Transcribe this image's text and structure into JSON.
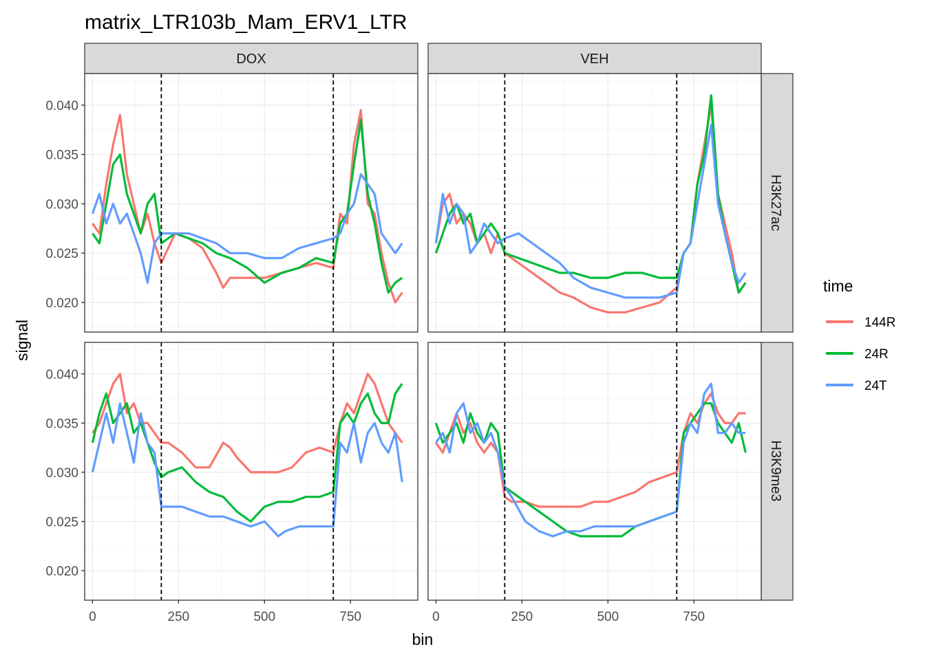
{
  "chart_data": {
    "type": "line",
    "title": "matrix_LTR103b_Mam_ERV1_LTR",
    "xlabel": "bin",
    "ylabel": "signal",
    "xlim": [
      0,
      900
    ],
    "ylim": [
      0.017,
      0.0432
    ],
    "x_ticks": [
      0,
      250,
      500,
      750
    ],
    "x_tick_labels": [
      "0",
      "250",
      "500",
      "750"
    ],
    "y_ticks": [
      0.02,
      0.025,
      0.03,
      0.035,
      0.04
    ],
    "y_tick_labels": [
      "0.020",
      "0.025",
      "0.030",
      "0.035",
      "0.040"
    ],
    "grid": true,
    "vlines": [
      200,
      700
    ],
    "col_facets": [
      "DOX",
      "VEH"
    ],
    "row_facets": [
      "H3K27ac",
      "H3K9me3"
    ],
    "legend": {
      "title": "time",
      "position": "right",
      "entries": [
        "144R",
        "24R",
        "24T"
      ],
      "colors": [
        "#F8766D",
        "#00BA38",
        "#619CFF"
      ]
    },
    "panels": [
      {
        "col": "DOX",
        "row": "H3K27ac",
        "series": [
          {
            "name": "144R",
            "x": [
              0,
              20,
              40,
              60,
              80,
              100,
              120,
              140,
              160,
              180,
              200,
              240,
              280,
              320,
              360,
              380,
              400,
              450,
              500,
              550,
              600,
              650,
              700,
              720,
              740,
              760,
              780,
              800,
              820,
              840,
              860,
              880,
              900
            ],
            "y": [
              0.028,
              0.027,
              0.032,
              0.036,
              0.039,
              0.033,
              0.03,
              0.027,
              0.029,
              0.026,
              0.024,
              0.027,
              0.0265,
              0.0255,
              0.023,
              0.0215,
              0.0225,
              0.0225,
              0.0225,
              0.023,
              0.0235,
              0.024,
              0.0235,
              0.029,
              0.028,
              0.036,
              0.0395,
              0.03,
              0.029,
              0.025,
              0.022,
              0.02,
              0.021
            ]
          },
          {
            "name": "24R",
            "x": [
              0,
              20,
              40,
              60,
              80,
              100,
              120,
              140,
              160,
              180,
              200,
              240,
              280,
              320,
              360,
              400,
              450,
              500,
              550,
              600,
              650,
              700,
              720,
              740,
              760,
              780,
              800,
              820,
              840,
              860,
              880,
              900
            ],
            "y": [
              0.027,
              0.026,
              0.03,
              0.034,
              0.035,
              0.031,
              0.029,
              0.027,
              0.03,
              0.031,
              0.026,
              0.027,
              0.0265,
              0.026,
              0.025,
              0.0245,
              0.0235,
              0.022,
              0.023,
              0.0235,
              0.0245,
              0.024,
              0.028,
              0.029,
              0.034,
              0.0385,
              0.031,
              0.028,
              0.024,
              0.021,
              0.022,
              0.0225
            ]
          },
          {
            "name": "24T",
            "x": [
              0,
              20,
              40,
              60,
              80,
              100,
              120,
              140,
              160,
              180,
              200,
              240,
              280,
              320,
              360,
              400,
              450,
              500,
              550,
              600,
              650,
              700,
              720,
              740,
              760,
              780,
              800,
              820,
              840,
              860,
              880,
              900
            ],
            "y": [
              0.029,
              0.031,
              0.028,
              0.03,
              0.028,
              0.029,
              0.027,
              0.025,
              0.022,
              0.026,
              0.027,
              0.027,
              0.027,
              0.0265,
              0.026,
              0.025,
              0.025,
              0.0245,
              0.0245,
              0.0255,
              0.026,
              0.0265,
              0.027,
              0.029,
              0.03,
              0.033,
              0.032,
              0.031,
              0.027,
              0.026,
              0.025,
              0.026
            ]
          }
        ]
      },
      {
        "col": "VEH",
        "row": "H3K27ac",
        "series": [
          {
            "name": "144R",
            "x": [
              0,
              20,
              40,
              60,
              80,
              100,
              120,
              140,
              160,
              180,
              200,
              240,
              280,
              320,
              360,
              400,
              450,
              500,
              550,
              600,
              650,
              700,
              720,
              740,
              760,
              780,
              800,
              820,
              840,
              860,
              880,
              900
            ],
            "y": [
              0.026,
              0.03,
              0.031,
              0.028,
              0.029,
              0.028,
              0.026,
              0.027,
              0.025,
              0.027,
              0.025,
              0.024,
              0.023,
              0.022,
              0.021,
              0.0205,
              0.0195,
              0.019,
              0.019,
              0.0195,
              0.02,
              0.0215,
              0.025,
              0.026,
              0.032,
              0.036,
              0.04,
              0.031,
              0.028,
              0.025,
              0.021,
              0.022
            ]
          },
          {
            "name": "24R",
            "x": [
              0,
              20,
              40,
              60,
              80,
              100,
              120,
              140,
              160,
              180,
              200,
              240,
              280,
              320,
              360,
              400,
              450,
              500,
              550,
              600,
              650,
              700,
              720,
              740,
              760,
              780,
              800,
              820,
              840,
              860,
              880,
              900
            ],
            "y": [
              0.025,
              0.027,
              0.029,
              0.03,
              0.028,
              0.029,
              0.026,
              0.027,
              0.028,
              0.027,
              0.025,
              0.0245,
              0.024,
              0.0235,
              0.023,
              0.023,
              0.0225,
              0.0225,
              0.023,
              0.023,
              0.0225,
              0.0225,
              0.025,
              0.026,
              0.032,
              0.035,
              0.041,
              0.031,
              0.027,
              0.024,
              0.021,
              0.022
            ]
          },
          {
            "name": "24T",
            "x": [
              0,
              20,
              40,
              60,
              80,
              100,
              120,
              140,
              160,
              180,
              200,
              240,
              280,
              320,
              360,
              400,
              450,
              500,
              550,
              600,
              650,
              700,
              720,
              740,
              760,
              780,
              800,
              820,
              840,
              860,
              880,
              900
            ],
            "y": [
              0.026,
              0.031,
              0.028,
              0.03,
              0.029,
              0.025,
              0.026,
              0.028,
              0.027,
              0.026,
              0.0265,
              0.027,
              0.026,
              0.025,
              0.024,
              0.0225,
              0.0215,
              0.021,
              0.0205,
              0.0205,
              0.0205,
              0.021,
              0.025,
              0.026,
              0.03,
              0.034,
              0.038,
              0.03,
              0.027,
              0.024,
              0.022,
              0.023
            ]
          }
        ]
      },
      {
        "col": "DOX",
        "row": "H3K9me3",
        "series": [
          {
            "name": "144R",
            "x": [
              0,
              20,
              40,
              60,
              80,
              100,
              120,
              140,
              160,
              180,
              200,
              220,
              260,
              300,
              340,
              380,
              400,
              420,
              460,
              500,
              540,
              580,
              620,
              660,
              700,
              720,
              740,
              760,
              780,
              800,
              820,
              840,
              860,
              880,
              900
            ],
            "y": [
              0.034,
              0.035,
              0.037,
              0.039,
              0.04,
              0.036,
              0.037,
              0.035,
              0.035,
              0.034,
              0.033,
              0.033,
              0.032,
              0.0305,
              0.0305,
              0.033,
              0.0325,
              0.0315,
              0.03,
              0.03,
              0.03,
              0.0305,
              0.032,
              0.0325,
              0.032,
              0.035,
              0.037,
              0.036,
              0.038,
              0.04,
              0.039,
              0.037,
              0.035,
              0.034,
              0.033
            ]
          },
          {
            "name": "24R",
            "x": [
              0,
              20,
              40,
              60,
              80,
              100,
              120,
              140,
              160,
              180,
              200,
              220,
              260,
              300,
              340,
              380,
              420,
              460,
              500,
              540,
              580,
              620,
              660,
              700,
              720,
              740,
              760,
              780,
              800,
              820,
              840,
              860,
              880,
              900
            ],
            "y": [
              0.033,
              0.036,
              0.038,
              0.035,
              0.036,
              0.037,
              0.034,
              0.035,
              0.033,
              0.031,
              0.0295,
              0.03,
              0.0305,
              0.029,
              0.028,
              0.0275,
              0.026,
              0.025,
              0.0265,
              0.027,
              0.027,
              0.0275,
              0.0275,
              0.028,
              0.035,
              0.036,
              0.035,
              0.037,
              0.038,
              0.036,
              0.035,
              0.035,
              0.038,
              0.039
            ]
          },
          {
            "name": "24T",
            "x": [
              0,
              20,
              40,
              60,
              80,
              100,
              120,
              140,
              160,
              180,
              200,
              220,
              260,
              300,
              340,
              380,
              420,
              460,
              500,
              540,
              560,
              600,
              640,
              680,
              700,
              720,
              740,
              760,
              780,
              800,
              820,
              840,
              860,
              880,
              900
            ],
            "y": [
              0.03,
              0.033,
              0.036,
              0.033,
              0.037,
              0.034,
              0.031,
              0.036,
              0.033,
              0.032,
              0.0265,
              0.0265,
              0.0265,
              0.026,
              0.0255,
              0.0255,
              0.025,
              0.0245,
              0.025,
              0.0235,
              0.024,
              0.0245,
              0.0245,
              0.0245,
              0.0245,
              0.033,
              0.032,
              0.035,
              0.031,
              0.034,
              0.035,
              0.033,
              0.032,
              0.034,
              0.029
            ]
          }
        ]
      },
      {
        "col": "VEH",
        "row": "H3K9me3",
        "series": [
          {
            "name": "144R",
            "x": [
              0,
              20,
              40,
              60,
              80,
              100,
              120,
              140,
              160,
              180,
              200,
              220,
              260,
              300,
              340,
              380,
              420,
              460,
              500,
              540,
              580,
              620,
              660,
              700,
              720,
              740,
              760,
              780,
              800,
              820,
              840,
              860,
              880,
              900
            ],
            "y": [
              0.033,
              0.032,
              0.034,
              0.036,
              0.034,
              0.035,
              0.033,
              0.032,
              0.033,
              0.032,
              0.0275,
              0.027,
              0.027,
              0.0265,
              0.0265,
              0.0265,
              0.0265,
              0.027,
              0.027,
              0.0275,
              0.028,
              0.029,
              0.0295,
              0.03,
              0.034,
              0.036,
              0.035,
              0.037,
              0.038,
              0.036,
              0.035,
              0.035,
              0.036,
              0.036
            ]
          },
          {
            "name": "24R",
            "x": [
              0,
              20,
              40,
              60,
              80,
              100,
              120,
              140,
              160,
              180,
              200,
              220,
              260,
              300,
              340,
              380,
              420,
              460,
              500,
              540,
              580,
              620,
              660,
              700,
              720,
              740,
              760,
              780,
              800,
              820,
              840,
              860,
              880,
              900
            ],
            "y": [
              0.035,
              0.033,
              0.034,
              0.035,
              0.033,
              0.036,
              0.034,
              0.033,
              0.035,
              0.034,
              0.0285,
              0.028,
              0.027,
              0.026,
              0.025,
              0.024,
              0.0235,
              0.0235,
              0.0235,
              0.0235,
              0.0245,
              0.025,
              0.0255,
              0.026,
              0.034,
              0.035,
              0.036,
              0.037,
              0.037,
              0.035,
              0.034,
              0.033,
              0.035,
              0.032
            ]
          },
          {
            "name": "24T",
            "x": [
              0,
              20,
              40,
              60,
              80,
              100,
              120,
              140,
              160,
              180,
              200,
              220,
              260,
              300,
              340,
              380,
              420,
              460,
              500,
              540,
              580,
              620,
              660,
              700,
              720,
              740,
              760,
              780,
              800,
              820,
              840,
              860,
              880,
              900
            ],
            "y": [
              0.033,
              0.034,
              0.032,
              0.036,
              0.037,
              0.034,
              0.035,
              0.033,
              0.034,
              0.032,
              0.0285,
              0.0275,
              0.025,
              0.024,
              0.0235,
              0.024,
              0.024,
              0.0245,
              0.0245,
              0.0245,
              0.0245,
              0.025,
              0.0255,
              0.026,
              0.033,
              0.035,
              0.034,
              0.038,
              0.039,
              0.034,
              0.034,
              0.035,
              0.034,
              0.034
            ]
          }
        ]
      }
    ]
  }
}
